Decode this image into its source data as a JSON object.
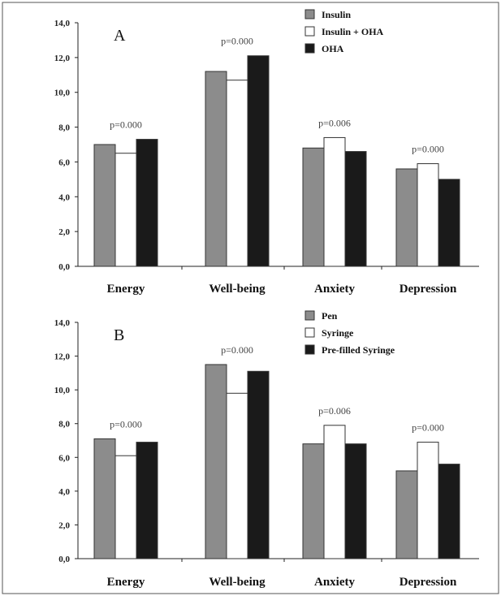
{
  "chart_data": [
    {
      "type": "bar",
      "panel_label": "A",
      "categories": [
        "Energy",
        "Well-being",
        "Anxiety",
        "Depression"
      ],
      "series": [
        {
          "name": "Insulin",
          "color": "#8c8c8c",
          "values": [
            7.0,
            11.2,
            6.8,
            5.6
          ]
        },
        {
          "name": "Insulin + OHA",
          "color": "#ffffff",
          "values": [
            6.5,
            10.7,
            7.4,
            5.9
          ]
        },
        {
          "name": "OHA",
          "color": "#1a1a1a",
          "values": [
            7.3,
            12.1,
            6.6,
            5.0
          ]
        }
      ],
      "annotations": [
        "p=0.000",
        "p=0.000",
        "p=0.006",
        "p=0.000"
      ],
      "yticks": [
        "0,0",
        "2,0",
        "4,0",
        "6,0",
        "8,0",
        "10,0",
        "12,0",
        "14,0"
      ],
      "ylim": [
        0,
        14
      ],
      "grid": false,
      "legend_position": "top-right"
    },
    {
      "type": "bar",
      "panel_label": "B",
      "categories": [
        "Energy",
        "Well-being",
        "Anxiety",
        "Depression"
      ],
      "series": [
        {
          "name": "Pen",
          "color": "#8c8c8c",
          "values": [
            7.1,
            11.5,
            6.8,
            5.2
          ]
        },
        {
          "name": "Syringe",
          "color": "#ffffff",
          "values": [
            6.1,
            9.8,
            7.9,
            6.9
          ]
        },
        {
          "name": "Pre-filled Syringe",
          "color": "#1a1a1a",
          "values": [
            6.9,
            11.1,
            6.8,
            5.6
          ]
        }
      ],
      "annotations": [
        "p=0.000",
        "p=0.000",
        "p=0.006",
        "p=0.000"
      ],
      "yticks": [
        "0,0",
        "2,0",
        "4,0",
        "6,0",
        "8,0",
        "10,0",
        "12,0",
        "14,0"
      ],
      "ylim": [
        0,
        14
      ],
      "grid": false,
      "legend_position": "top-right"
    }
  ]
}
